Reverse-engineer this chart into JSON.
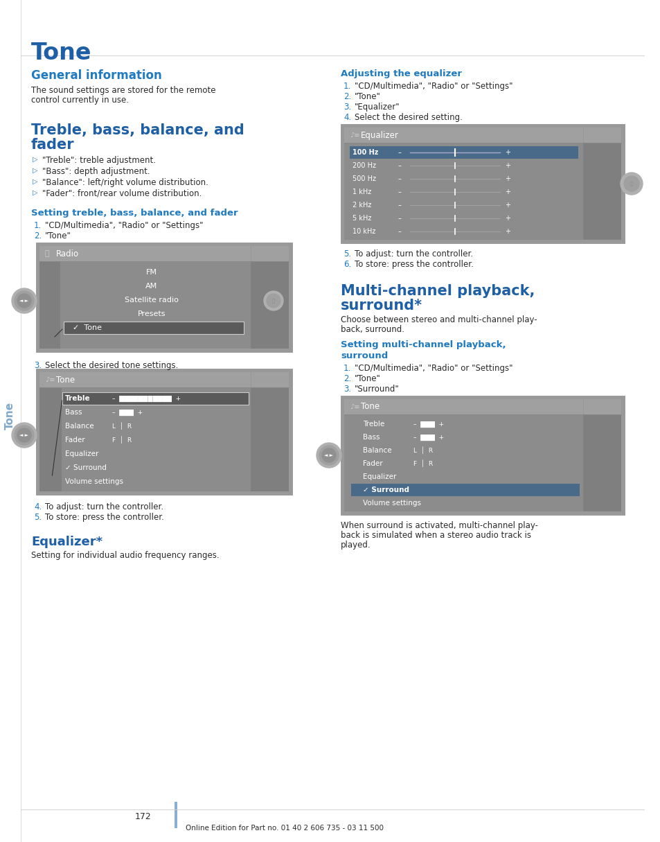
{
  "page_title": "Tone",
  "sidebar_text": "Tone",
  "blue_color": "#1f5fa6",
  "subhead_color": "#1f7abf",
  "body_text_color": "#2a2a2a",
  "number_color": "#1f7abf",
  "bg_color": "#ffffff",
  "sidebar_blue": "#7fa8cc",
  "img_bg": "#8c8c8c",
  "img_darker": "#767676",
  "img_title_bg": "#9e9e9e",
  "img_highlight": "#4a6a8a",
  "img_border": "#606060",
  "section1_title": "General information",
  "section1_body1": "The sound settings are stored for the remote",
  "section1_body2": "control currently in use.",
  "section2_title1": "Treble, bass, balance, and",
  "section2_title2": "fader",
  "section2_bullets": [
    "\"Treble\": treble adjustment.",
    "\"Bass\": depth adjustment.",
    "\"Balance\": left/right volume distribution.",
    "\"Fader\": front/rear volume distribution."
  ],
  "section3_title": "Setting treble, bass, balance, and fader",
  "section3_steps": [
    "\"CD/Multimedia\", \"Radio\" or \"Settings\"",
    "\"Tone\""
  ],
  "section3_note3": "Select the desired tone settings.",
  "section3_note4": "To adjust: turn the controller.",
  "section3_note5": "To store: press the controller.",
  "section4_title": "Equalizer*",
  "section4_body": "Setting for individual audio frequency ranges.",
  "section5_title": "Adjusting the equalizer",
  "section5_steps": [
    "\"CD/Multimedia\", \"Radio\" or \"Settings\"",
    "\"Tone\"",
    "\"Equalizer\"",
    "Select the desired setting."
  ],
  "section5_note5": "To adjust: turn the controller.",
  "section5_note6": "To store: press the controller.",
  "section6_title1": "Multi-channel playback,",
  "section6_title2": "surround*",
  "section6_body1": "Choose between stereo and multi-channel play-",
  "section6_body2": "back, surround.",
  "section7_title1": "Setting multi-channel playback,",
  "section7_title2": "surround",
  "section7_steps": [
    "\"CD/Multimedia\", \"Radio\" or \"Settings\"",
    "\"Tone\"",
    "\"Surround\""
  ],
  "section7_body1": "When surround is activated, multi-channel play-",
  "section7_body2": "back is simulated when a stereo audio track is",
  "section7_body3": "played.",
  "footer_page": "172",
  "footer_text": "Online Edition for Part no. 01 40 2 606 735 - 03 11 500",
  "accent_bar_color": "#8aafd4"
}
